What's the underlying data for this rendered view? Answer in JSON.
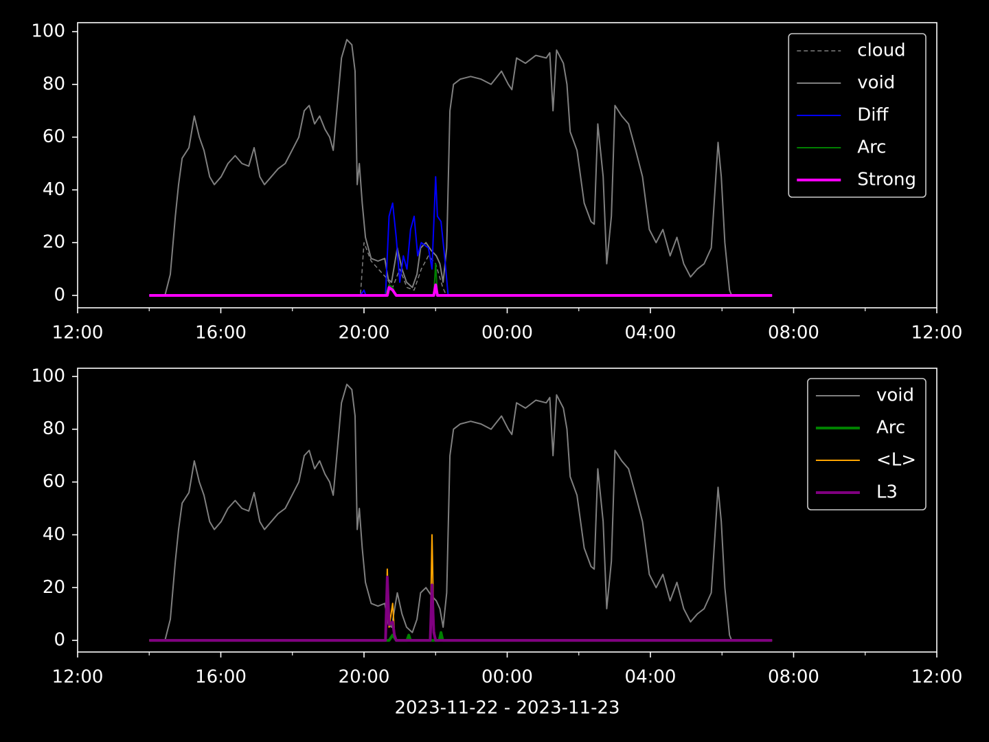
{
  "chart_data": [
    {
      "type": "line",
      "legend": "upper right",
      "xlim": [
        0,
        24
      ],
      "xticks": [
        {
          "value": 0,
          "label": "12:00"
        },
        {
          "value": 4,
          "label": "16:00"
        },
        {
          "value": 8,
          "label": "20:00"
        },
        {
          "value": 12,
          "label": "00:00"
        },
        {
          "value": 16,
          "label": "04:00"
        },
        {
          "value": 20,
          "label": "08:00"
        },
        {
          "value": 24,
          "label": "12:00"
        }
      ],
      "xminorticks": [
        2,
        6,
        10,
        14,
        18,
        22
      ],
      "ylim": [
        -4.7,
        103.4
      ],
      "yticks": [
        0,
        20,
        40,
        60,
        80,
        100
      ],
      "series": [
        {
          "name": "cloud",
          "color": "#808080",
          "width": 1.5,
          "dash": "6,4",
          "x": [
            2.0,
            7.9,
            8.0,
            8.2,
            8.4,
            8.6,
            8.8,
            9.0,
            9.2,
            9.4,
            9.6,
            9.8,
            10.0,
            10.2,
            10.3,
            19.4
          ],
          "values": [
            0,
            0,
            20,
            13,
            10,
            7,
            3,
            10,
            3,
            2,
            10,
            15,
            12,
            3,
            0,
            0
          ]
        },
        {
          "name": "void",
          "color": "#808080",
          "width": 2,
          "x": [
            2.44,
            2.59,
            2.73,
            2.82,
            2.92,
            3.11,
            3.26,
            3.4,
            3.53,
            3.69,
            3.82,
            4.01,
            4.2,
            4.4,
            4.59,
            4.78,
            4.93,
            5.09,
            5.22,
            5.41,
            5.6,
            5.8,
            5.99,
            6.18,
            6.33,
            6.47,
            6.62,
            6.76,
            6.91,
            7.04,
            7.14,
            7.24,
            7.37,
            7.52,
            7.66,
            7.75,
            7.81,
            7.87,
            7.95,
            8.04,
            8.2,
            8.39,
            8.58,
            8.68,
            8.77,
            8.93,
            9.06,
            9.19,
            9.35,
            9.48,
            9.58,
            9.73,
            9.88,
            10.02,
            10.12,
            10.21,
            10.31,
            10.4,
            10.5,
            10.69,
            10.98,
            11.27,
            11.55,
            11.84,
            12.03,
            12.13,
            12.26,
            12.51,
            12.8,
            13.09,
            13.19,
            13.28,
            13.38,
            13.57,
            13.67,
            13.76,
            13.95,
            14.15,
            14.34,
            14.43,
            14.53,
            14.68,
            14.78,
            14.91,
            15.01,
            15.2,
            15.39,
            15.59,
            15.78,
            15.97,
            16.16,
            16.35,
            16.55,
            16.74,
            16.93,
            17.12,
            17.31,
            17.5,
            17.7,
            17.89,
            17.98,
            18.08,
            18.21,
            18.27
          ],
          "values": [
            0,
            8,
            30,
            42,
            52,
            56,
            68,
            60,
            55,
            45,
            42,
            45,
            50,
            53,
            50,
            49,
            56,
            45,
            42,
            45,
            48,
            50,
            55,
            60,
            70,
            72,
            65,
            68,
            63,
            60,
            55,
            70,
            90,
            97,
            95,
            85,
            42,
            50,
            35,
            22,
            14,
            13,
            14,
            6,
            5,
            18,
            10,
            5,
            3,
            8,
            18,
            20,
            17,
            15,
            12,
            5,
            18,
            70,
            80,
            82,
            83,
            82,
            80,
            85,
            80,
            78,
            90,
            88,
            91,
            90,
            92,
            70,
            93,
            88,
            80,
            62,
            55,
            35,
            28,
            27,
            65,
            45,
            12,
            30,
            72,
            68,
            65,
            55,
            45,
            25,
            20,
            25,
            15,
            22,
            12,
            7,
            10,
            12,
            18,
            58,
            45,
            20,
            2,
            0
          ]
        },
        {
          "name": "Diff",
          "color": "#0000ff",
          "width": 2,
          "x": [
            2.0,
            7.9,
            8.0,
            8.05,
            8.6,
            8.7,
            8.8,
            8.9,
            9.0,
            9.1,
            9.2,
            9.3,
            9.4,
            9.5,
            9.6,
            9.8,
            9.9,
            10.0,
            10.05,
            10.15,
            10.25,
            10.35,
            19.4
          ],
          "values": [
            0,
            0,
            2,
            0,
            0,
            30,
            35,
            22,
            5,
            15,
            10,
            25,
            30,
            15,
            20,
            18,
            10,
            45,
            30,
            28,
            15,
            0,
            0
          ]
        },
        {
          "name": "Arc",
          "color": "#008000",
          "width": 2,
          "x": [
            2.0,
            8.6,
            8.7,
            8.8,
            8.9,
            9.95,
            10.0,
            10.05,
            19.4
          ],
          "values": [
            0,
            0,
            4,
            3,
            0,
            0,
            12,
            0,
            0
          ]
        },
        {
          "name": "Strong",
          "color": "#ff00ff",
          "width": 4,
          "x": [
            2.0,
            8.65,
            8.7,
            8.8,
            8.9,
            9.95,
            10.0,
            10.05,
            19.4
          ],
          "values": [
            0,
            0,
            3,
            2,
            0,
            0,
            4,
            0,
            0
          ]
        }
      ]
    },
    {
      "type": "line",
      "legend": "upper right",
      "xlabel": "2023-11-22 - 2023-11-23",
      "xlim": [
        0,
        24
      ],
      "xticks": [
        {
          "value": 0,
          "label": "12:00"
        },
        {
          "value": 4,
          "label": "16:00"
        },
        {
          "value": 8,
          "label": "20:00"
        },
        {
          "value": 12,
          "label": "00:00"
        },
        {
          "value": 16,
          "label": "04:00"
        },
        {
          "value": 20,
          "label": "08:00"
        },
        {
          "value": 24,
          "label": "12:00"
        }
      ],
      "xminorticks": [
        2,
        6,
        10,
        14,
        18,
        22
      ],
      "ylim": [
        -4.4,
        103.1
      ],
      "yticks": [
        0,
        20,
        40,
        60,
        80,
        100
      ],
      "series": [
        {
          "name": "void",
          "color": "#808080",
          "width": 2,
          "x": [
            2.44,
            2.59,
            2.73,
            2.82,
            2.92,
            3.11,
            3.26,
            3.4,
            3.53,
            3.69,
            3.82,
            4.01,
            4.2,
            4.4,
            4.59,
            4.78,
            4.93,
            5.09,
            5.22,
            5.41,
            5.6,
            5.8,
            5.99,
            6.18,
            6.33,
            6.47,
            6.62,
            6.76,
            6.91,
            7.04,
            7.14,
            7.24,
            7.37,
            7.52,
            7.66,
            7.75,
            7.81,
            7.87,
            7.95,
            8.04,
            8.2,
            8.39,
            8.58,
            8.68,
            8.77,
            8.93,
            9.06,
            9.19,
            9.35,
            9.48,
            9.58,
            9.73,
            9.88,
            10.02,
            10.12,
            10.21,
            10.31,
            10.4,
            10.5,
            10.69,
            10.98,
            11.27,
            11.55,
            11.84,
            12.03,
            12.13,
            12.26,
            12.51,
            12.8,
            13.09,
            13.19,
            13.28,
            13.38,
            13.57,
            13.67,
            13.76,
            13.95,
            14.15,
            14.34,
            14.43,
            14.53,
            14.68,
            14.78,
            14.91,
            15.01,
            15.2,
            15.39,
            15.59,
            15.78,
            15.97,
            16.16,
            16.35,
            16.55,
            16.74,
            16.93,
            17.12,
            17.31,
            17.5,
            17.7,
            17.89,
            17.98,
            18.08,
            18.21,
            18.27
          ],
          "values": [
            0,
            8,
            30,
            42,
            52,
            56,
            68,
            60,
            55,
            45,
            42,
            45,
            50,
            53,
            50,
            49,
            56,
            45,
            42,
            45,
            48,
            50,
            55,
            60,
            70,
            72,
            65,
            68,
            63,
            60,
            55,
            70,
            90,
            97,
            95,
            85,
            42,
            50,
            35,
            22,
            14,
            13,
            14,
            6,
            5,
            18,
            10,
            5,
            3,
            8,
            18,
            20,
            17,
            15,
            12,
            5,
            18,
            70,
            80,
            82,
            83,
            82,
            80,
            85,
            80,
            78,
            90,
            88,
            91,
            90,
            92,
            70,
            93,
            88,
            80,
            62,
            55,
            35,
            28,
            27,
            65,
            45,
            12,
            30,
            72,
            68,
            65,
            55,
            45,
            25,
            20,
            25,
            15,
            22,
            12,
            7,
            10,
            12,
            18,
            58,
            45,
            20,
            2,
            0
          ]
        },
        {
          "name": "Arc",
          "color": "#008000",
          "width": 4,
          "x": [
            2.0,
            8.7,
            8.8,
            8.9,
            9.2,
            9.25,
            9.3,
            10.1,
            10.15,
            10.2,
            19.4
          ],
          "values": [
            0,
            0,
            2,
            0,
            0,
            2,
            0,
            0,
            3,
            0,
            0
          ]
        },
        {
          "name": "<L>",
          "color": "#ffa500",
          "width": 2,
          "x": [
            2.0,
            8.6,
            8.65,
            8.7,
            8.8,
            8.85,
            8.9,
            9.85,
            9.9,
            9.95,
            10.0,
            19.4
          ],
          "values": [
            0,
            0,
            27,
            5,
            14,
            3,
            0,
            0,
            40,
            5,
            0,
            0
          ]
        },
        {
          "name": "L3",
          "color": "#800080",
          "width": 4,
          "x": [
            2.0,
            8.6,
            8.65,
            8.7,
            8.8,
            8.85,
            8.9,
            9.85,
            9.9,
            9.95,
            10.0,
            19.4
          ],
          "values": [
            0,
            0,
            24,
            6,
            7,
            2,
            0,
            0,
            21,
            3,
            0,
            0
          ]
        }
      ]
    }
  ]
}
